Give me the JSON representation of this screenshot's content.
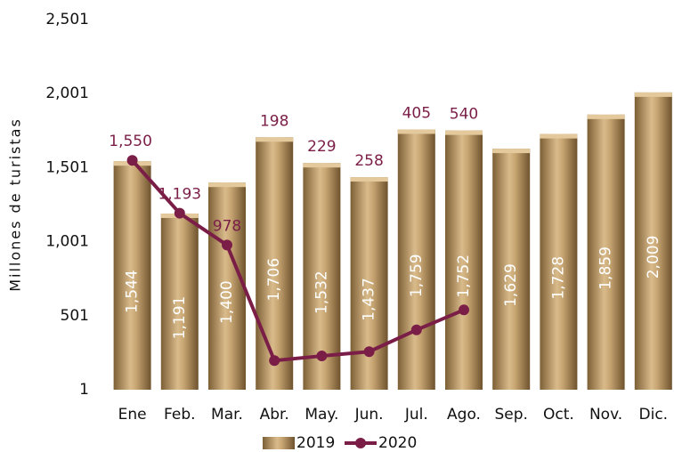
{
  "chart_data": {
    "type": "bar",
    "y_label": "Millones de turistas",
    "categories": [
      "Ene",
      "Feb.",
      "Mar.",
      "Abr.",
      "May.",
      "Jun.",
      "Jul.",
      "Ago.",
      "Sep.",
      "Oct.",
      "Nov.",
      "Dic."
    ],
    "series": [
      {
        "name": "2019",
        "type": "bar",
        "color": "#b8945f",
        "values": [
          1544,
          1191,
          1400,
          1706,
          1532,
          1437,
          1759,
          1752,
          1629,
          1728,
          1859,
          2009
        ],
        "value_labels": [
          "1,544",
          "1,191",
          "1,400",
          "1,706",
          "1,532",
          "1,437",
          "1,759",
          "1,752",
          "1,629",
          "1,728",
          "1,859",
          "2,009"
        ]
      },
      {
        "name": "2020",
        "type": "line",
        "color": "#7b1e47",
        "values": [
          1550,
          1193,
          978,
          198,
          229,
          258,
          405,
          540,
          null,
          null,
          null,
          null
        ],
        "value_labels": [
          "1,550",
          "1,193",
          "978",
          "198",
          "229",
          "258",
          "405",
          "540",
          null,
          null,
          null,
          null
        ]
      }
    ],
    "ylim": [
      1,
      2501
    ],
    "yticks": [
      1,
      501,
      {
        "value": 1001,
        "label": "1,001"
      },
      {
        "value": 1501,
        "label": "1,501"
      },
      {
        "value": 2001,
        "label": "2,001"
      },
      {
        "value": 2501,
        "label": "2,501"
      }
    ],
    "grid": false
  }
}
